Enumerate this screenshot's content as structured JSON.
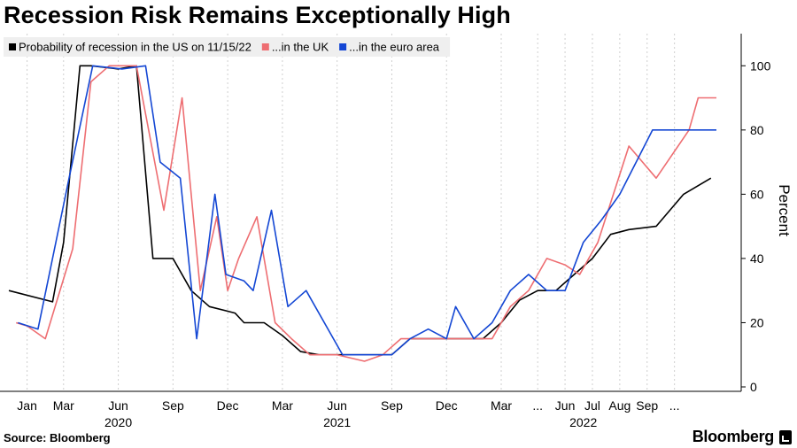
{
  "chart_data": {
    "type": "line",
    "title": "Recession Risk Remains Exceptionally High",
    "ylabel": "Percent",
    "ylim": [
      0,
      110
    ],
    "yticks": [
      0,
      20,
      40,
      60,
      80,
      100
    ],
    "grid": "vertical-dashed",
    "legend_position": "top-left",
    "month_ticks": [
      {
        "label": "Jan",
        "x": 1
      },
      {
        "label": "Mar",
        "x": 3
      },
      {
        "label": "Jun",
        "x": 6
      },
      {
        "label": "Sep",
        "x": 9
      },
      {
        "label": "Dec",
        "x": 12
      },
      {
        "label": "Mar",
        "x": 15
      },
      {
        "label": "Jun",
        "x": 18
      },
      {
        "label": "Sep",
        "x": 21
      },
      {
        "label": "Dec",
        "x": 24
      },
      {
        "label": "Mar",
        "x": 27
      },
      {
        "label": "...",
        "x": 29
      },
      {
        "label": "Jun",
        "x": 30.5
      },
      {
        "label": "Jul",
        "x": 32
      },
      {
        "label": "Aug",
        "x": 33.5
      },
      {
        "label": "Sep",
        "x": 35
      },
      {
        "label": "...",
        "x": 36.5
      }
    ],
    "year_ticks": [
      {
        "label": "2020",
        "x": 6
      },
      {
        "label": "2021",
        "x": 18
      },
      {
        "label": "2022",
        "x": 31.5
      }
    ],
    "series": [
      {
        "name": "Probability of recession in the US on 11/15/22",
        "color": "#000000",
        "points": [
          [
            0,
            30
          ],
          [
            2.4,
            26.5
          ],
          [
            3,
            45
          ],
          [
            3.9,
            100
          ],
          [
            4.5,
            100
          ],
          [
            6,
            99
          ],
          [
            7,
            100
          ],
          [
            7.9,
            40
          ],
          [
            9,
            40
          ],
          [
            10,
            30
          ],
          [
            11,
            25
          ],
          [
            12.4,
            23
          ],
          [
            12.9,
            20
          ],
          [
            14,
            20
          ],
          [
            15,
            16
          ],
          [
            16,
            11
          ],
          [
            17,
            10
          ],
          [
            18,
            10
          ],
          [
            19,
            10
          ],
          [
            20,
            10
          ],
          [
            21,
            10
          ],
          [
            22,
            15
          ],
          [
            23,
            15
          ],
          [
            24,
            15
          ],
          [
            25,
            15
          ],
          [
            26,
            15
          ],
          [
            27,
            20
          ],
          [
            28,
            27
          ],
          [
            29,
            30
          ],
          [
            30,
            30
          ],
          [
            31,
            35
          ],
          [
            32,
            40
          ],
          [
            33,
            47.5
          ],
          [
            34,
            49
          ],
          [
            35.5,
            50
          ],
          [
            37,
            60
          ],
          [
            38.5,
            65
          ]
        ]
      },
      {
        "name": "...in the UK",
        "color": "#ee6e72",
        "points": [
          [
            0.4,
            20
          ],
          [
            1,
            19
          ],
          [
            2,
            15
          ],
          [
            3.5,
            43
          ],
          [
            4.5,
            95
          ],
          [
            5.5,
            100
          ],
          [
            7,
            100
          ],
          [
            8.5,
            55
          ],
          [
            9.5,
            90
          ],
          [
            10.5,
            30
          ],
          [
            11.4,
            53
          ],
          [
            12,
            30
          ],
          [
            12.6,
            40
          ],
          [
            13.6,
            53
          ],
          [
            14.6,
            20
          ],
          [
            15.5,
            15
          ],
          [
            16.5,
            10
          ],
          [
            18,
            10
          ],
          [
            19.5,
            8
          ],
          [
            20.5,
            10
          ],
          [
            21.5,
            15
          ],
          [
            22.5,
            15
          ],
          [
            24,
            15
          ],
          [
            25,
            15
          ],
          [
            26.5,
            15
          ],
          [
            27.5,
            25
          ],
          [
            28.5,
            30
          ],
          [
            29.5,
            40
          ],
          [
            30.5,
            38
          ],
          [
            31.3,
            35
          ],
          [
            32.3,
            45
          ],
          [
            34,
            75
          ],
          [
            35.5,
            65
          ],
          [
            37.3,
            80
          ],
          [
            37.8,
            90
          ],
          [
            38.8,
            90
          ]
        ]
      },
      {
        "name": "...in the euro area",
        "color": "#1447d4",
        "points": [
          [
            0.5,
            20
          ],
          [
            1.6,
            18
          ],
          [
            3.3,
            65
          ],
          [
            4.6,
            100
          ],
          [
            6.2,
            99
          ],
          [
            7.5,
            100
          ],
          [
            8.3,
            70
          ],
          [
            9.4,
            65
          ],
          [
            10.3,
            15
          ],
          [
            11.3,
            60
          ],
          [
            11.9,
            35
          ],
          [
            12.9,
            33
          ],
          [
            13.4,
            30
          ],
          [
            14.4,
            55
          ],
          [
            15.3,
            25
          ],
          [
            16.3,
            30
          ],
          [
            18.3,
            10
          ],
          [
            19.5,
            10
          ],
          [
            21,
            10
          ],
          [
            22,
            15
          ],
          [
            23,
            18
          ],
          [
            24,
            15
          ],
          [
            24.5,
            25
          ],
          [
            25.5,
            15
          ],
          [
            26.5,
            20
          ],
          [
            27.5,
            30
          ],
          [
            28.5,
            35
          ],
          [
            29.5,
            30
          ],
          [
            30.5,
            30
          ],
          [
            31.5,
            45
          ],
          [
            32.5,
            52
          ],
          [
            33.5,
            60
          ],
          [
            35.3,
            80
          ],
          [
            36.3,
            80
          ],
          [
            37.3,
            80
          ],
          [
            38.8,
            80
          ]
        ]
      }
    ]
  },
  "footer": {
    "source": "Source: Bloomberg",
    "brand": "Bloomberg"
  },
  "colors": {
    "legend_background": "#efefef",
    "grid": "#cfcfcf"
  }
}
